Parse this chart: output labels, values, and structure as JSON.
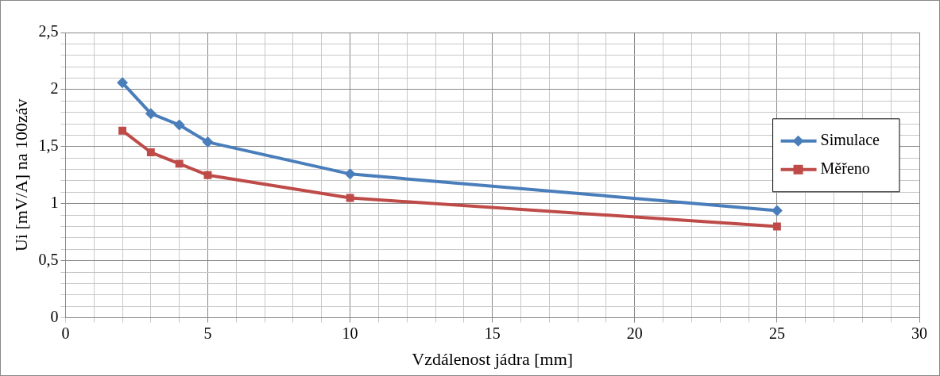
{
  "chart_data": {
    "type": "line",
    "xlabel": "Vzdálenost jádra [mm]",
    "ylabel": "Ui [mV/A] na 100záv",
    "x": [
      2,
      3,
      4,
      5,
      10,
      25
    ],
    "series": [
      {
        "name": "Simulace",
        "color": "#4a7ebb",
        "marker": "diamond",
        "values": [
          2.06,
          1.79,
          1.69,
          1.54,
          1.26,
          0.94
        ]
      },
      {
        "name": "Měřeno",
        "color": "#be4b48",
        "marker": "square",
        "values": [
          1.64,
          1.45,
          1.35,
          1.25,
          1.05,
          0.8
        ]
      }
    ],
    "xlim": [
      0,
      30
    ],
    "xticks": [
      0,
      {
        "value": 1,
        "label": null
      },
      {
        "value": 2,
        "label": null
      },
      {
        "value": 3,
        "label": null
      },
      {
        "value": 4,
        "label": null
      },
      5,
      {
        "value": 6,
        "label": null
      },
      {
        "value": 7,
        "label": null
      },
      {
        "value": 8,
        "label": null
      },
      {
        "value": 9,
        "label": null
      },
      10,
      {
        "value": 11,
        "label": null
      },
      {
        "value": 12,
        "label": null
      },
      {
        "value": 13,
        "label": null
      },
      {
        "value": 14,
        "label": null
      },
      15,
      {
        "value": 16,
        "label": null
      },
      {
        "value": 17,
        "label": null
      },
      {
        "value": 18,
        "label": null
      },
      {
        "value": 19,
        "label": null
      },
      20,
      {
        "value": 21,
        "label": null
      },
      {
        "value": 22,
        "label": null
      },
      {
        "value": 23,
        "label": null
      },
      {
        "value": 24,
        "label": null
      },
      25,
      {
        "value": 26,
        "label": null
      },
      {
        "value": 27,
        "label": null
      },
      {
        "value": 28,
        "label": null
      },
      {
        "value": 29,
        "label": null
      },
      30
    ],
    "ylim": [
      0,
      2.5
    ],
    "yticks": [
      0,
      {
        "value": 0.1,
        "label": null
      },
      {
        "value": 0.2,
        "label": null
      },
      {
        "value": 0.3,
        "label": null
      },
      {
        "value": 0.4,
        "label": null
      },
      {
        "value": 0.5,
        "label": "0,5"
      },
      {
        "value": 0.6,
        "label": null
      },
      {
        "value": 0.7,
        "label": null
      },
      {
        "value": 0.8,
        "label": null
      },
      {
        "value": 0.9,
        "label": null
      },
      1,
      {
        "value": 1.1,
        "label": null
      },
      {
        "value": 1.2,
        "label": null
      },
      {
        "value": 1.3,
        "label": null
      },
      {
        "value": 1.4,
        "label": null
      },
      {
        "value": 1.5,
        "label": "1,5"
      },
      {
        "value": 1.6,
        "label": null
      },
      {
        "value": 1.7,
        "label": null
      },
      {
        "value": 1.8,
        "label": null
      },
      {
        "value": 1.9,
        "label": null
      },
      2,
      {
        "value": 2.1,
        "label": null
      },
      {
        "value": 2.2,
        "label": null
      },
      {
        "value": 2.3,
        "label": null
      },
      {
        "value": 2.4,
        "label": null
      },
      {
        "value": 2.5,
        "label": "2,5"
      }
    ],
    "grid": true,
    "legend": "right",
    "line_style": "solid"
  }
}
